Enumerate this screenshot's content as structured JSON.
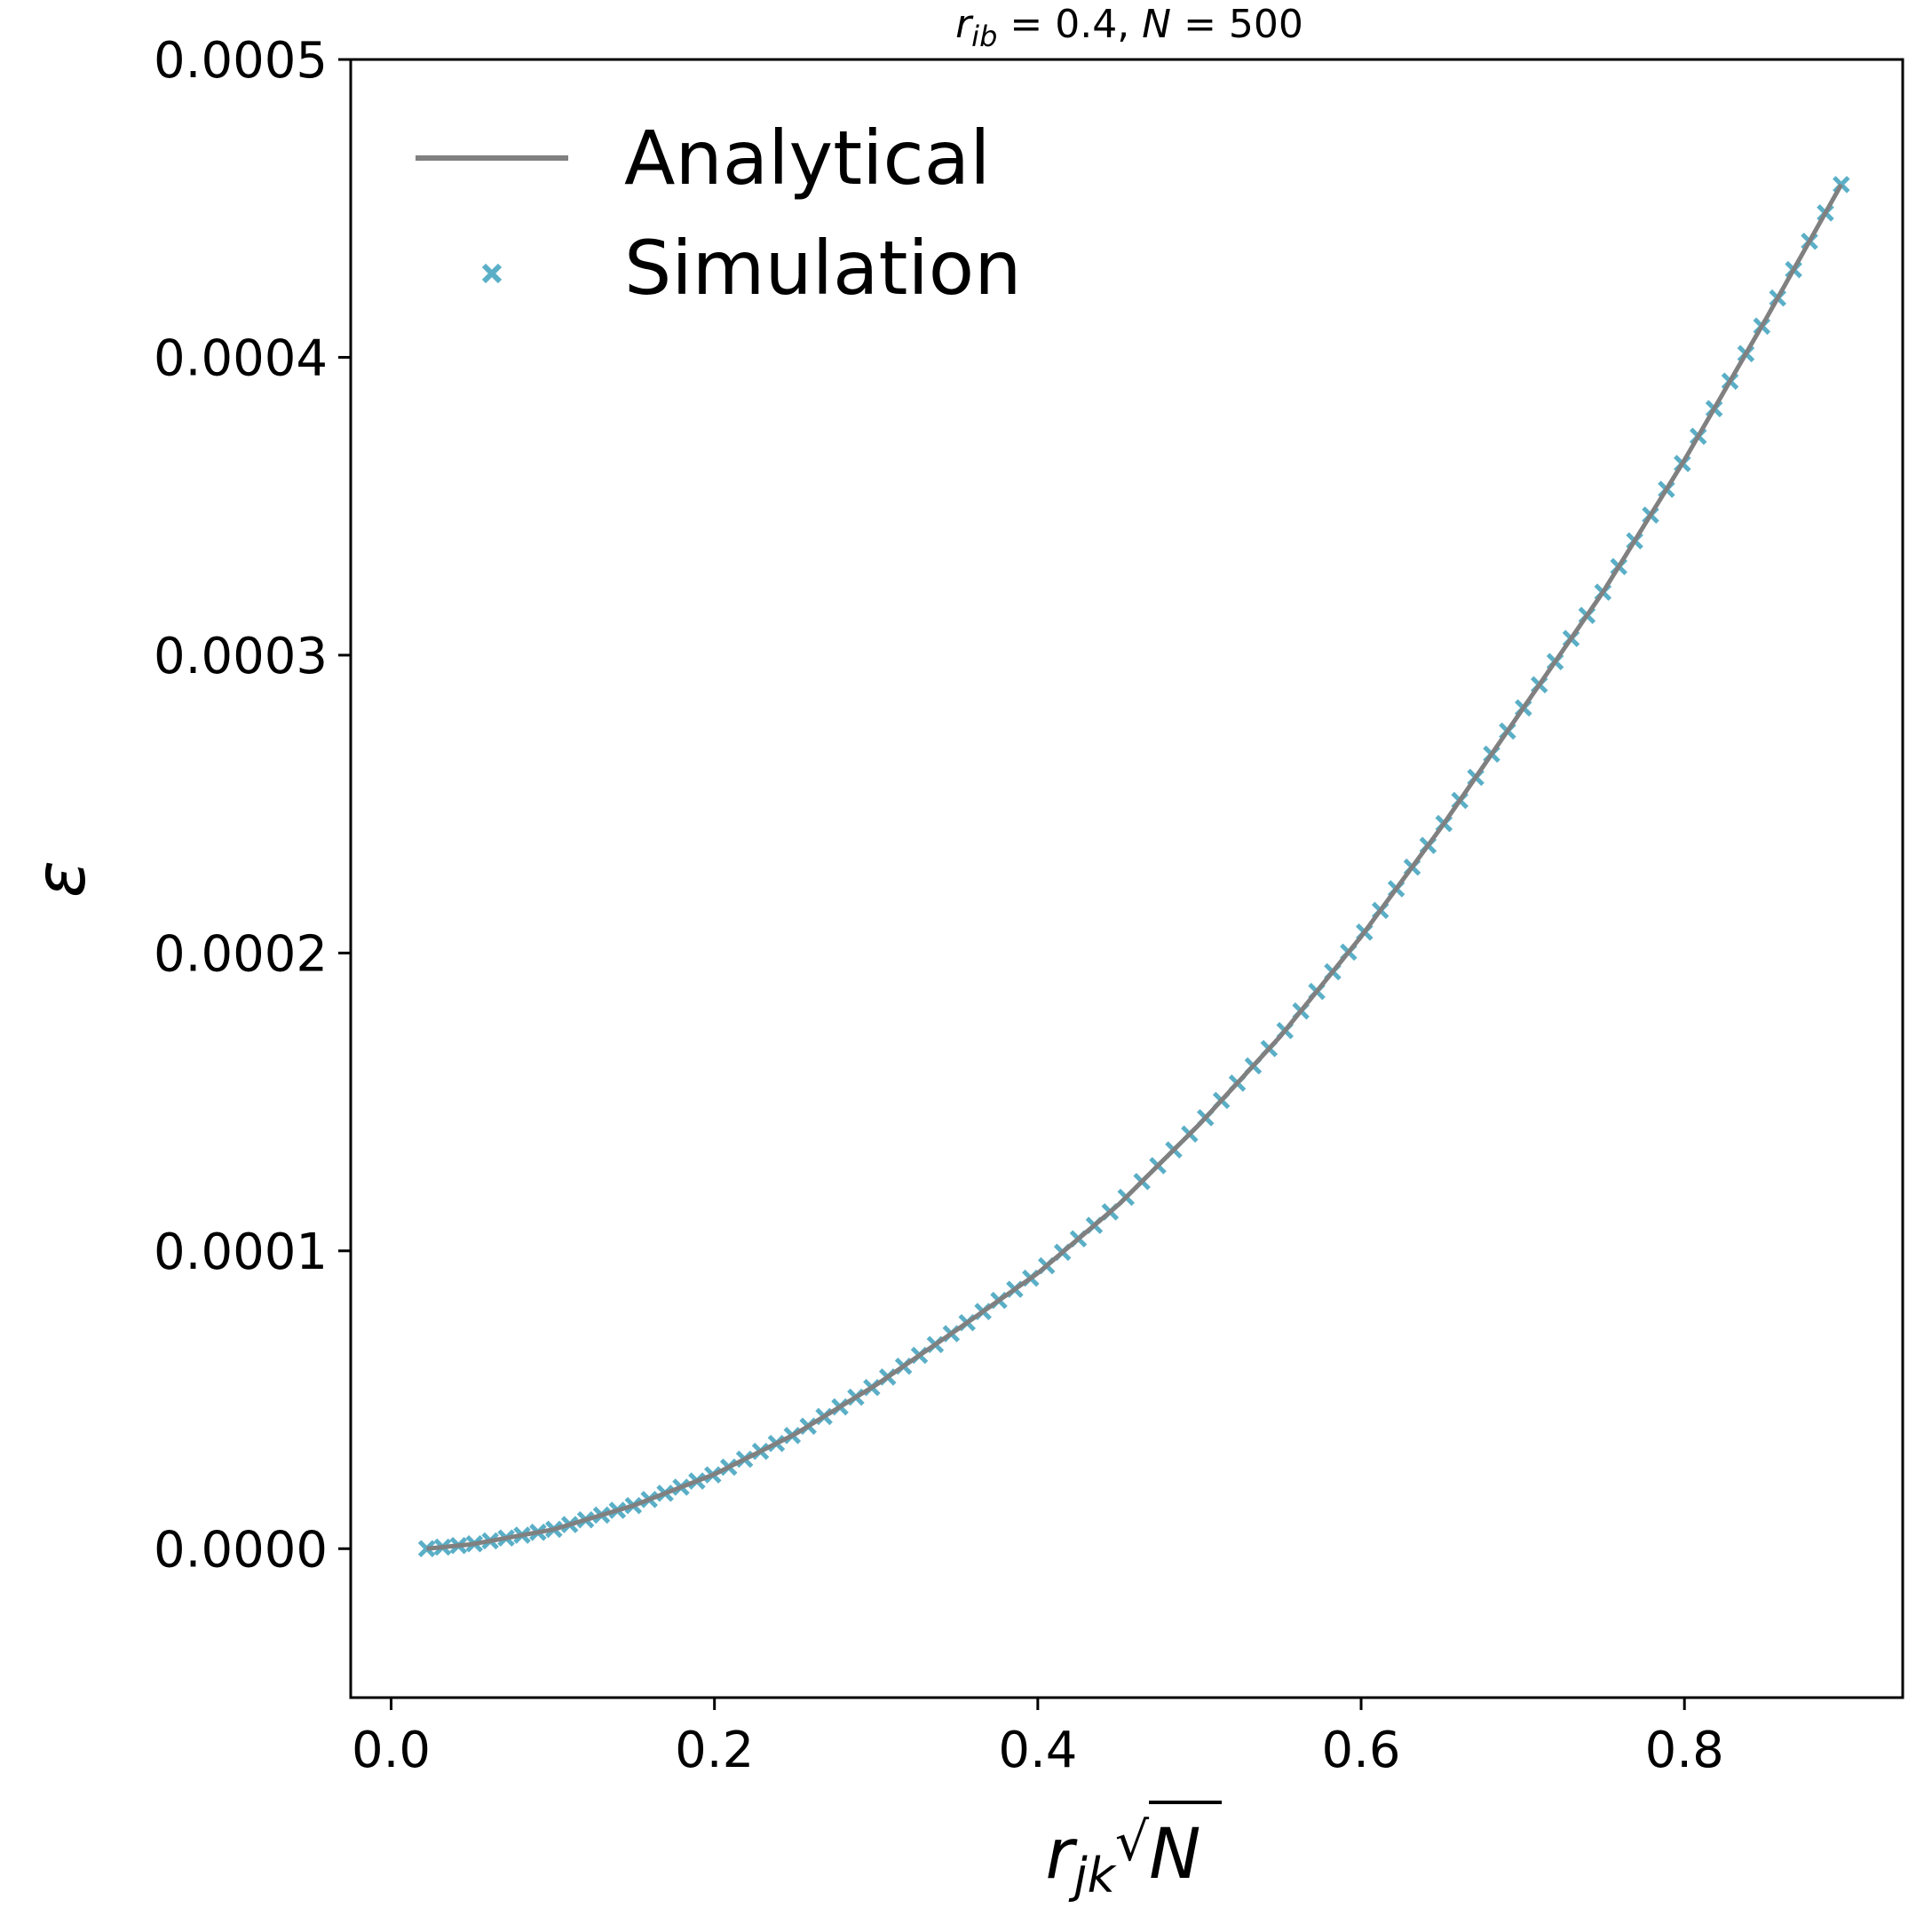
{
  "chart_data": {
    "type": "line",
    "title": "r_ib = 0.4, N = 500",
    "title_parts": {
      "r": "r",
      "sub": "ib",
      "rest": " = 0.4, ",
      "n": "N",
      "end": " = 500"
    },
    "xlabel": "r_jk √N",
    "xlabel_parts": {
      "r": "r",
      "sub": "jk",
      "sqrt": "√",
      "n": "N"
    },
    "ylabel": "ε",
    "xlim": [
      -0.025,
      0.935
    ],
    "ylim": [
      -5e-05,
      0.0005
    ],
    "xticks": [
      0.0,
      0.2,
      0.4,
      0.6,
      0.8
    ],
    "xtick_labels": [
      "0.0",
      "0.2",
      "0.4",
      "0.6",
      "0.8"
    ],
    "yticks": [
      0.0,
      0.0001,
      0.0002,
      0.0003,
      0.0004,
      0.0005
    ],
    "ytick_labels": [
      "0.0000",
      "0.0001",
      "0.0002",
      "0.0003",
      "0.0004",
      "0.0005"
    ],
    "grid": false,
    "legend_position": "top-left",
    "series": [
      {
        "name": "Analytical",
        "kind": "line",
        "color": "#808080",
        "x": [
          0.022,
          0.05,
          0.1,
          0.15,
          0.2,
          0.25,
          0.3,
          0.35,
          0.4,
          0.45,
          0.5,
          0.55,
          0.6,
          0.65,
          0.7,
          0.75,
          0.8,
          0.85,
          0.897
        ],
        "y": [
          0.0,
          1.5e-06,
          6.4e-06,
          1.45e-05,
          2.5e-05,
          3.85e-05,
          5.5e-05,
          7.35e-05,
          9.25e-05,
          0.0001155,
          0.0001425,
          0.000172,
          0.0002055,
          0.0002425,
          0.000282,
          0.0003215,
          0.0003655,
          0.0004125,
          0.000458
        ]
      },
      {
        "name": "Simulation",
        "kind": "scatter",
        "marker": "x",
        "color": "#5aafc7",
        "x": [
          0.022,
          0.897
        ],
        "y": [
          0.0,
          0.000458
        ],
        "count": 90
      }
    ]
  }
}
